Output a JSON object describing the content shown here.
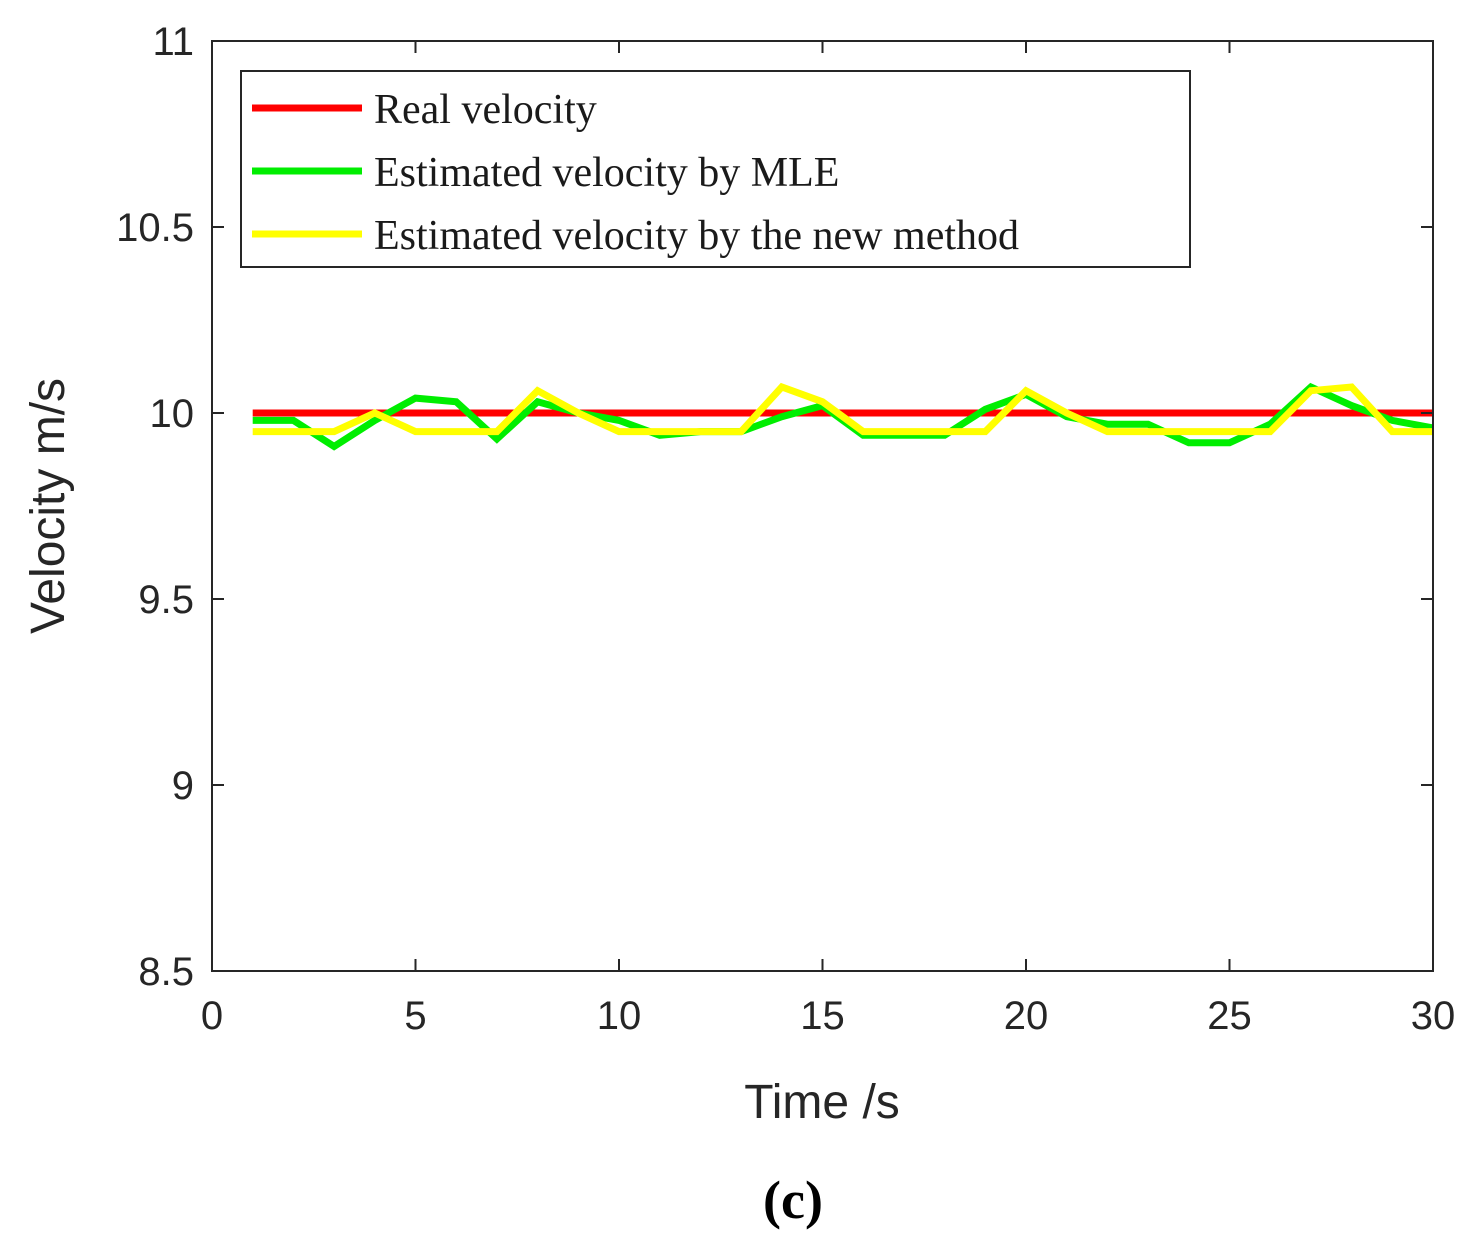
{
  "chart_data": {
    "type": "line",
    "title": "",
    "xlabel": "Time /s",
    "ylabel": "Velocity m/s",
    "xlim": [
      0,
      30
    ],
    "ylim": [
      8.5,
      11
    ],
    "xticks": [
      0,
      5,
      10,
      15,
      20,
      25,
      30
    ],
    "yticks": [
      8.5,
      9,
      9.5,
      10,
      10.5,
      11
    ],
    "xtick_labels": [
      "0",
      "5",
      "10",
      "15",
      "20",
      "25",
      "30"
    ],
    "ytick_labels": [
      "8.5",
      "9",
      "9.5",
      "10",
      "10.5",
      "11"
    ],
    "grid": false,
    "legend_position": "top-left",
    "x": [
      1,
      2,
      3,
      4,
      5,
      6,
      7,
      8,
      9,
      10,
      11,
      12,
      13,
      14,
      15,
      16,
      17,
      18,
      19,
      20,
      21,
      22,
      23,
      24,
      25,
      26,
      27,
      28,
      29,
      30
    ],
    "series": [
      {
        "name": "Real velocity",
        "color": "#ff0000",
        "values": [
          10,
          10,
          10,
          10,
          10,
          10,
          10,
          10,
          10,
          10,
          10,
          10,
          10,
          10,
          10,
          10,
          10,
          10,
          10,
          10,
          10,
          10,
          10,
          10,
          10,
          10,
          10,
          10,
          10,
          10
        ]
      },
      {
        "name": "Estimated velocity by MLE",
        "color": "#00ee00",
        "values": [
          9.98,
          9.98,
          9.91,
          9.98,
          10.04,
          10.03,
          9.93,
          10.03,
          10.0,
          9.98,
          9.94,
          9.95,
          9.95,
          9.99,
          10.02,
          9.94,
          9.94,
          9.94,
          10.01,
          10.05,
          9.99,
          9.97,
          9.97,
          9.92,
          9.92,
          9.97,
          10.07,
          10.02,
          9.98,
          9.96
        ]
      },
      {
        "name": "Estimated velocity by the new method",
        "color": "#ffff00",
        "values": [
          9.95,
          9.95,
          9.95,
          10.0,
          9.95,
          9.95,
          9.95,
          10.06,
          10.0,
          9.95,
          9.95,
          9.95,
          9.95,
          10.07,
          10.03,
          9.95,
          9.95,
          9.95,
          9.95,
          10.06,
          10.0,
          9.95,
          9.95,
          9.95,
          9.95,
          9.95,
          10.06,
          10.07,
          9.95,
          9.95
        ]
      }
    ],
    "caption": "(c)"
  }
}
